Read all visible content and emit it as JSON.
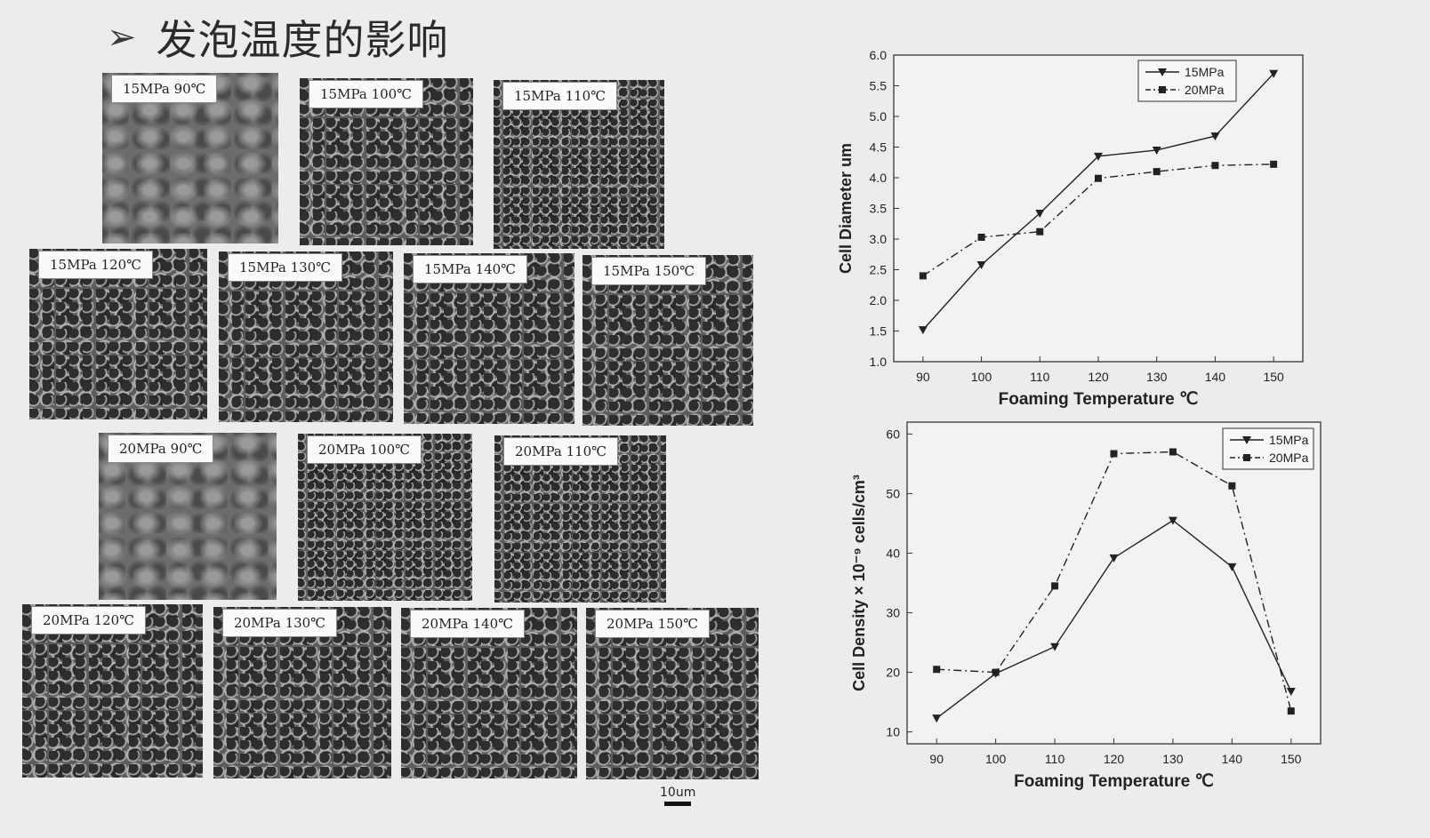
{
  "header": {
    "title": "发泡温度的影响",
    "bullet_icon": "arrow-bullet-icon"
  },
  "micrographs": [
    {
      "label": "15MPa 90℃",
      "style": "smooth"
    },
    {
      "label": "15MPa 100℃",
      "style": "normal"
    },
    {
      "label": "15MPa 110℃",
      "style": "dense"
    },
    {
      "label": "15MPa 120℃",
      "style": "normal"
    },
    {
      "label": "15MPa 130℃",
      "style": "normal"
    },
    {
      "label": "15MPa 140℃",
      "style": "normal"
    },
    {
      "label": "15MPa 150℃",
      "style": "normal"
    },
    {
      "label": "20MPa 90℃",
      "style": "smooth"
    },
    {
      "label": "20MPa 100℃",
      "style": "dense"
    },
    {
      "label": "20MPa 110℃",
      "style": "dense"
    },
    {
      "label": "20MPa 120℃",
      "style": "normal"
    },
    {
      "label": "20MPa 130℃",
      "style": "normal"
    },
    {
      "label": "20MPa 140℃",
      "style": "normal"
    },
    {
      "label": "20MPa 150℃",
      "style": "normal"
    }
  ],
  "scale_bar": {
    "label": "10um"
  },
  "chart_data": [
    {
      "type": "line",
      "ylabel": "Cell Diameter  um",
      "xlabel": "Foaming Temperature ℃",
      "x": [
        90,
        100,
        110,
        120,
        130,
        140,
        150
      ],
      "xlim": [
        85,
        155
      ],
      "ylim": [
        1.0,
        6.0
      ],
      "yticks": [
        1.0,
        1.5,
        2.0,
        2.5,
        3.0,
        3.5,
        4.0,
        4.5,
        5.0,
        5.5,
        6.0
      ],
      "legend_position": "top-right",
      "series": [
        {
          "name": "15MPa",
          "marker": "triangle-down",
          "dash": "solid",
          "values": [
            1.52,
            2.58,
            3.42,
            4.35,
            4.45,
            4.68,
            5.7
          ]
        },
        {
          "name": "20MPa",
          "marker": "square",
          "dash": "dash-dot",
          "values": [
            2.4,
            3.03,
            3.12,
            3.99,
            4.1,
            4.2,
            4.22
          ]
        }
      ]
    },
    {
      "type": "line",
      "ylabel": "Cell Density × 10⁻⁹ cells/cm³",
      "xlabel": "Foaming Temperature ℃",
      "x": [
        90,
        100,
        110,
        120,
        130,
        140,
        150
      ],
      "xlim": [
        85,
        155
      ],
      "ylim": [
        8,
        62
      ],
      "yticks": [
        10,
        20,
        30,
        40,
        50,
        60
      ],
      "legend_position": "top-right",
      "series": [
        {
          "name": "15MPa",
          "marker": "triangle-down",
          "dash": "solid",
          "values": [
            12.3,
            19.8,
            24.3,
            39.2,
            45.5,
            37.7,
            16.8
          ]
        },
        {
          "name": "20MPa",
          "marker": "square",
          "dash": "dash-dot",
          "values": [
            20.5,
            20.0,
            34.5,
            56.7,
            57.0,
            51.3,
            13.5
          ]
        }
      ]
    }
  ]
}
